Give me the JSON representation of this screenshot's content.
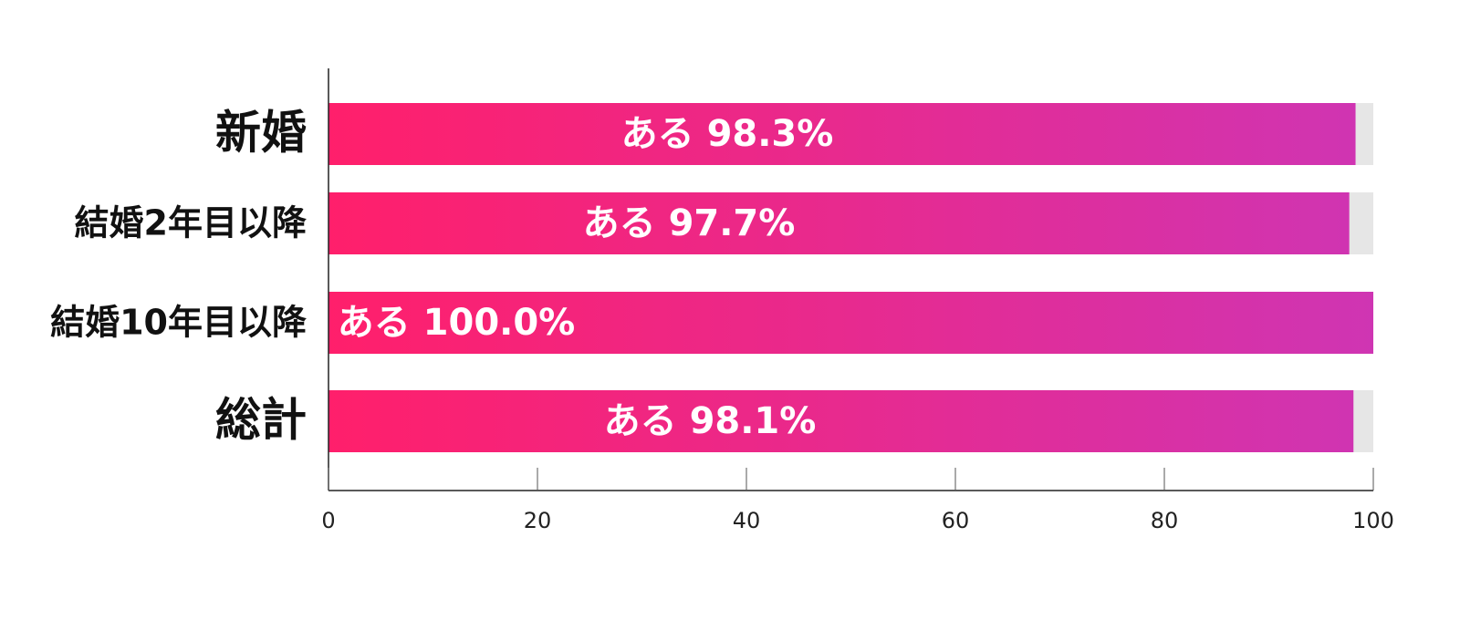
{
  "chart_data": {
    "type": "bar",
    "orientation": "horizontal",
    "categories": [
      "新婚",
      "結婚2年目以降",
      "結婚10年目以降",
      "総計"
    ],
    "values": [
      98.3,
      97.7,
      100.0,
      98.1
    ],
    "value_labels": [
      "ある 98.3%",
      "ある 97.7%",
      "ある 100.0%",
      "ある 98.1%"
    ],
    "color": [
      "#ff1f6b",
      "#cf35b3"
    ],
    "xlim": [
      0,
      100
    ],
    "xticks": [
      0,
      20,
      40,
      60,
      80,
      100
    ]
  }
}
